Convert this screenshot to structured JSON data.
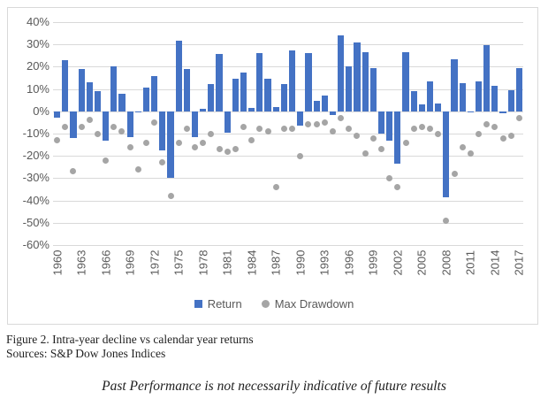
{
  "chart_data": {
    "type": "bar",
    "title": "",
    "categories": [
      1960,
      1961,
      1962,
      1963,
      1964,
      1965,
      1966,
      1967,
      1968,
      1969,
      1970,
      1971,
      1972,
      1973,
      1974,
      1975,
      1976,
      1977,
      1978,
      1979,
      1980,
      1981,
      1982,
      1983,
      1984,
      1985,
      1986,
      1987,
      1988,
      1989,
      1990,
      1991,
      1992,
      1993,
      1994,
      1995,
      1996,
      1997,
      1998,
      1999,
      2000,
      2001,
      2002,
      2003,
      2004,
      2005,
      2006,
      2007,
      2008,
      2009,
      2010,
      2011,
      2012,
      2013,
      2014,
      2015,
      2016,
      2017
    ],
    "series": [
      {
        "name": "Return",
        "type": "bar",
        "color": "#4472C4",
        "values": [
          -3.0,
          23.1,
          -11.8,
          18.9,
          13.0,
          9.1,
          -13.1,
          20.1,
          7.7,
          -11.4,
          0.1,
          10.8,
          15.6,
          -17.4,
          -29.7,
          31.5,
          19.1,
          -11.5,
          1.1,
          12.3,
          25.8,
          -9.7,
          14.8,
          17.3,
          1.4,
          26.3,
          14.6,
          2.0,
          12.4,
          27.3,
          -6.6,
          26.3,
          4.5,
          7.1,
          -1.5,
          34.1,
          20.3,
          31.0,
          26.7,
          19.5,
          -10.1,
          -13.0,
          -23.4,
          26.4,
          9.0,
          3.0,
          13.6,
          3.5,
          -38.5,
          23.5,
          12.8,
          0.0,
          13.4,
          29.6,
          11.4,
          -0.7,
          9.5,
          19.4
        ]
      },
      {
        "name": "Max Drawdown",
        "type": "scatter",
        "color": "#A5A5A5",
        "values": [
          -13,
          -7,
          -27,
          -7,
          -4,
          -10,
          -22,
          -7,
          -9,
          -16,
          -26,
          -14,
          -5,
          -23,
          -38,
          -14,
          -8,
          -16,
          -14,
          -10,
          -17,
          -18,
          -17,
          -7,
          -13,
          -8,
          -9,
          -34,
          -8,
          -8,
          -20,
          -6,
          -6,
          -5,
          -9,
          -3,
          -8,
          -11,
          -19,
          -12,
          -17,
          -30,
          -34,
          -14,
          -8,
          -7,
          -8,
          -10,
          -49,
          -28,
          -16,
          -19,
          -10,
          -6,
          -7,
          -12,
          -11,
          -3
        ]
      }
    ],
    "ylim": [
      -60,
      40
    ],
    "y_tick_labels": [
      "40%",
      "30%",
      "20%",
      "10%",
      "0%",
      "-10%",
      "-20%",
      "-30%",
      "-40%",
      "-50%",
      "-60%"
    ],
    "x_tick_labels": [
      "1960",
      "1963",
      "1966",
      "1969",
      "1972",
      "1975",
      "1978",
      "1981",
      "1984",
      "1987",
      "1990",
      "1993",
      "1996",
      "1999",
      "2002",
      "2005",
      "2008",
      "2011",
      "2014",
      "2017"
    ],
    "x_tick_interval": 3,
    "grid": true,
    "legend_position": "bottom-center"
  },
  "colors": {
    "bar_blue": "#4472C4",
    "dot_gray": "#A5A5A5",
    "gridline": "#D9D9D9",
    "axis_text": "#595959"
  },
  "caption": {
    "line1": "Figure 2. Intra-year decline vs calendar year returns",
    "line2": "Sources: S&P Dow Jones Indices"
  },
  "disclaimer": {
    "text": "Past Performance is not necessarily indicative of future results"
  }
}
